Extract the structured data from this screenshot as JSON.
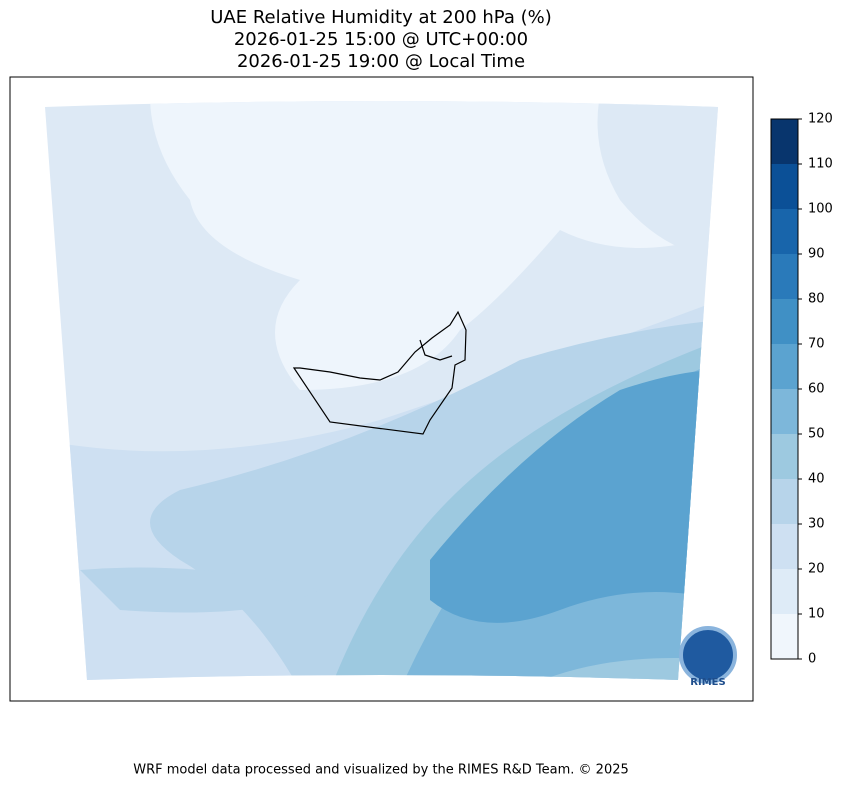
{
  "title": [
    "UAE Relative Humidity at 200 hPa (%)",
    "2026-01-25 15:00 @ UTC+00:00",
    "2026-01-25 19:00 @ Local Time"
  ],
  "colorbar": {
    "lim": [
      0,
      120
    ],
    "ticks": [
      0,
      10,
      20,
      30,
      40,
      50,
      60,
      70,
      80,
      90,
      100,
      110,
      120
    ],
    "colors": [
      "#f0f6fc",
      "#deebf7",
      "#cee0f2",
      "#b7d4ea",
      "#9dc9e0",
      "#7db7da",
      "#5ba3d0",
      "#4090c5",
      "#2a7aba",
      "#1865ab",
      "#0b5097",
      "#08356d"
    ]
  },
  "logo": "RIMES",
  "footer": "WRF model data processed and visualized by the RIMES R&D Team. © 2025"
}
